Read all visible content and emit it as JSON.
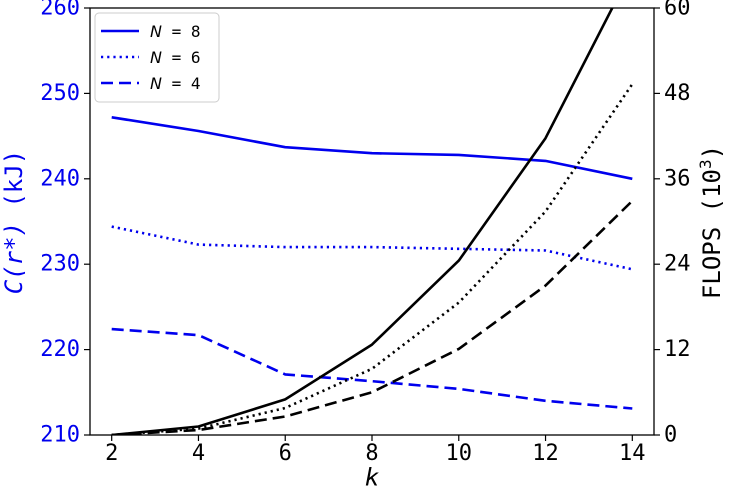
{
  "chart_data": {
    "type": "line",
    "x": [
      2,
      4,
      6,
      8,
      10,
      12,
      14
    ],
    "xlabel": "k",
    "xlim": [
      1.5,
      14.5
    ],
    "xticks": [
      2,
      4,
      6,
      8,
      10,
      12,
      14
    ],
    "y_left": {
      "label_main": "C(r*)",
      "label_unit": " (kJ)",
      "lim": [
        210,
        260
      ],
      "ticks": [
        210,
        220,
        230,
        240,
        250,
        260
      ],
      "color": "#0000ee"
    },
    "y_right": {
      "label_main": "FLOPS",
      "label_unit": " (10",
      "label_exp": "3",
      "label_close": ")",
      "lim": [
        0,
        60
      ],
      "ticks": [
        0,
        12,
        24,
        36,
        48,
        60
      ],
      "color": "#000000"
    },
    "legend": {
      "placement": "top-left",
      "entries": [
        {
          "name_var": "N",
          "name_eq": " = ",
          "name_val": "8",
          "dash": "solid"
        },
        {
          "name_var": "N",
          "name_eq": " = ",
          "name_val": "6",
          "dash": "dotted"
        },
        {
          "name_var": "N",
          "name_eq": " = ",
          "name_val": "4",
          "dash": "dashed"
        }
      ]
    },
    "series_cost": [
      {
        "name": "N = 8",
        "axis": "left",
        "dash": "solid",
        "color": "#0000ee",
        "values": [
          247.2,
          245.6,
          243.7,
          243.0,
          242.8,
          242.1,
          240.0
        ]
      },
      {
        "name": "N = 6",
        "axis": "left",
        "dash": "dotted",
        "color": "#0000ee",
        "values": [
          234.4,
          232.3,
          232.0,
          232.0,
          231.8,
          231.6,
          229.4
        ]
      },
      {
        "name": "N = 4",
        "axis": "left",
        "dash": "dashed",
        "color": "#0000ee",
        "values": [
          222.4,
          221.7,
          217.1,
          216.3,
          215.4,
          214.0,
          213.1
        ]
      }
    ],
    "series_flops": [
      {
        "name": "N = 8",
        "axis": "right",
        "dash": "solid",
        "color": "#000000",
        "values": [
          0.0,
          1.2,
          5.0,
          12.7,
          24.5,
          41.7,
          65.5
        ]
      },
      {
        "name": "N = 6",
        "axis": "right",
        "dash": "dotted",
        "color": "#000000",
        "values": [
          0.0,
          0.9,
          3.8,
          9.3,
          18.6,
          31.4,
          49.3
        ]
      },
      {
        "name": "N = 4",
        "axis": "right",
        "dash": "dashed",
        "color": "#000000",
        "values": [
          0.0,
          0.7,
          2.6,
          6.0,
          12.1,
          21.0,
          32.9
        ]
      }
    ]
  }
}
